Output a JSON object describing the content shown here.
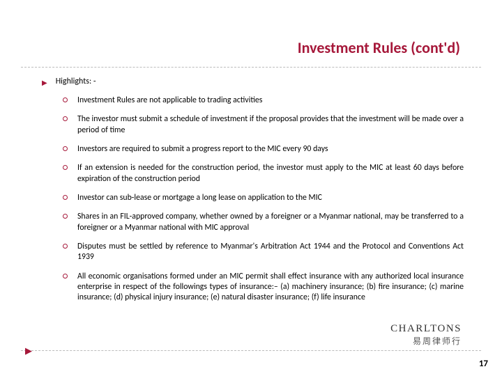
{
  "title": "Investment Rules (cont'd)",
  "title_fontsize": 22,
  "title_color": "#a6183a",
  "bullet_marker_color": "#a6183a",
  "highlights_label": "Highlights: -",
  "items": {
    "0": "Investment Rules are not applicable to trading activities",
    "1": "The investor must submit a schedule of investment if the proposal provides that the investment will be made over a period of time",
    "2": "Investors are required to submit a progress report to the MIC every 90 days",
    "3": "If an extension is needed for the construction period, the investor must apply to the MIC at least 60 days before expiration of the construction period",
    "4": "Investor can sub-lease or mortgage a long lease on application to the MIC",
    "5": "Shares in an FIL-approved company, whether owned by a foreigner or a Myanmar national, may be transferred to a foreigner or a Myanmar national with MIC approval",
    "6": "Disputes must be settled by reference to Myanmar's Arbitration Act 1944 and the Protocol and Conventions Act 1939",
    "7": "All economic organisations formed under an MIC permit shall effect insurance with any authorized local insurance enterprise in respect of the followings types of insurance:– (a) machinery insurance; (b) fire insurance; (c) marine insurance; (d) physical injury insurance; (e) natural disaster insurance; (f) life insurance"
  },
  "logo": {
    "main": "CHARLTONS",
    "sub": "易周律师行"
  },
  "page_number": "17",
  "body_fontsize": 11.8,
  "divider_color": "#bbbbbb",
  "background_color": "#ffffff"
}
